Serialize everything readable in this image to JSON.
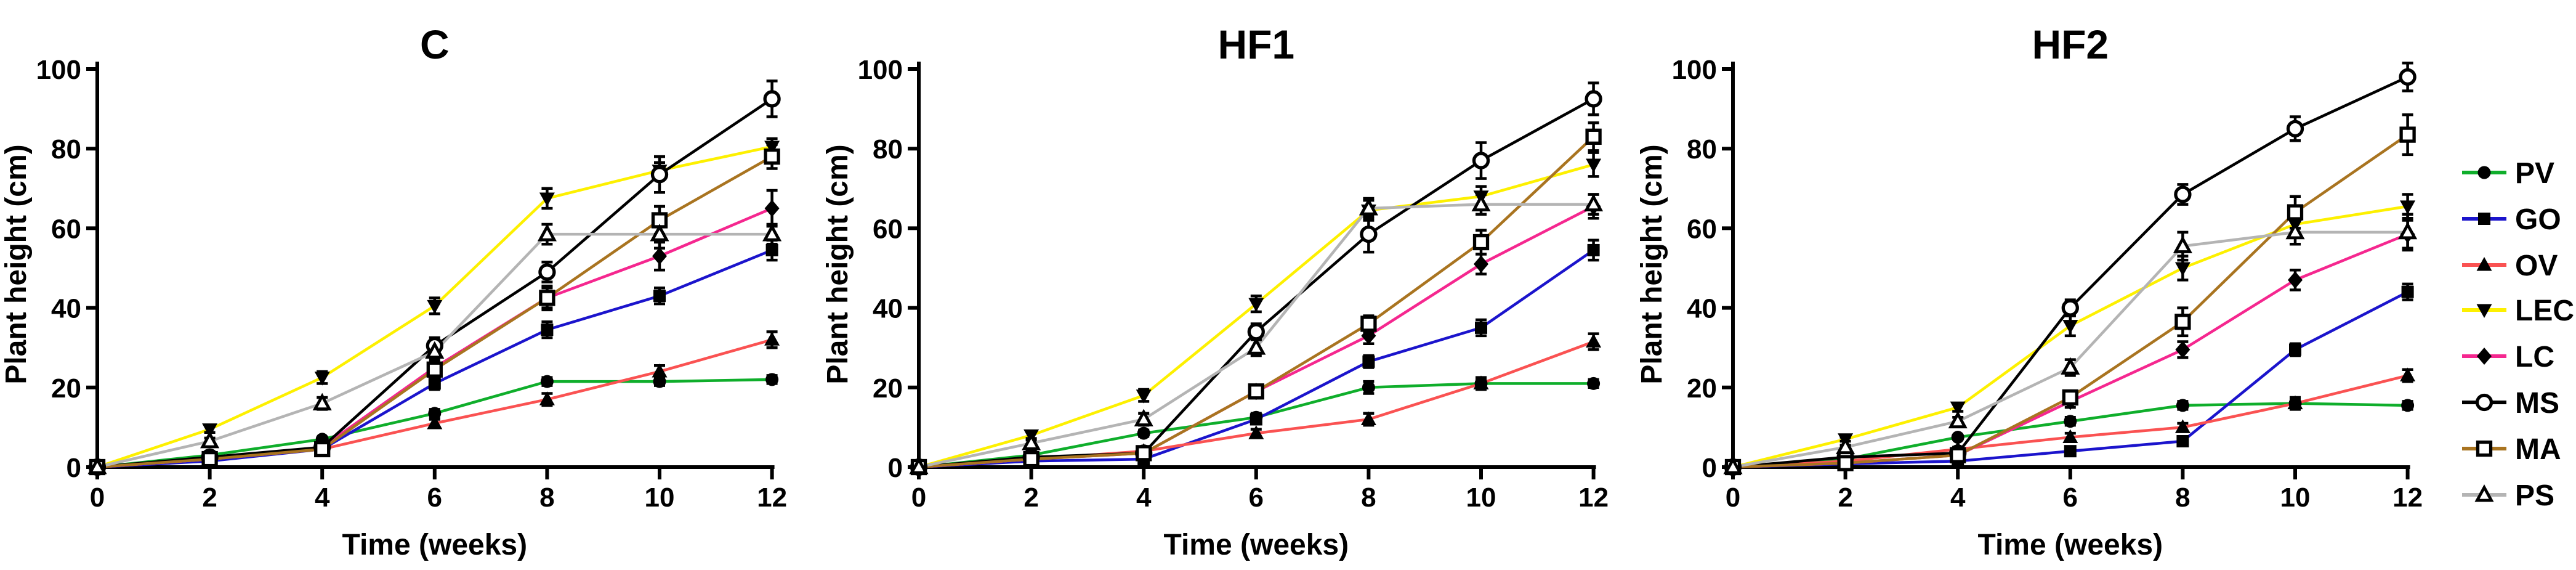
{
  "figure": {
    "type": "scientific-line-figure",
    "panels_count": 3,
    "background": "#ffffff",
    "marker_color": "#000000"
  },
  "chart_data": [
    {
      "type": "line",
      "title": "C",
      "xlabel": "Time (weeks)",
      "ylabel": "Plant height (cm)",
      "x": [
        0,
        2,
        4,
        6,
        8,
        10,
        12
      ],
      "xlim": [
        0,
        12
      ],
      "ylim": [
        0,
        100
      ],
      "xticks": [
        0,
        2,
        4,
        6,
        8,
        10,
        12
      ],
      "yticks": [
        0,
        20,
        40,
        60,
        80,
        100
      ],
      "grid": false,
      "series": [
        {
          "name": "PV",
          "values": [
            0,
            3,
            7,
            13.5,
            21.5,
            21.5,
            22
          ],
          "errors": [
            0,
            0,
            0,
            1,
            1,
            1,
            1
          ]
        },
        {
          "name": "GO",
          "values": [
            0,
            1.5,
            4.5,
            21,
            34.5,
            43,
            54.5
          ],
          "errors": [
            0,
            0,
            0.5,
            1.5,
            2,
            2,
            2.5
          ]
        },
        {
          "name": "OV",
          "values": [
            0,
            2,
            4.5,
            11,
            17,
            24,
            32
          ],
          "errors": [
            0,
            0,
            0.5,
            1,
            1.5,
            1.5,
            2
          ]
        },
        {
          "name": "LEC",
          "values": [
            0,
            9.5,
            22.5,
            40.5,
            67.5,
            74.5,
            80.5
          ],
          "errors": [
            0,
            0.8,
            1.5,
            2,
            2.5,
            2,
            2
          ]
        },
        {
          "name": "LC",
          "values": [
            0,
            2,
            5,
            25,
            42.5,
            53,
            65
          ],
          "errors": [
            0,
            0,
            0.5,
            1.5,
            2.5,
            3.5,
            4.5
          ]
        },
        {
          "name": "MS",
          "values": [
            0,
            2.5,
            5,
            30.5,
            49,
            73.5,
            92.5
          ],
          "errors": [
            0,
            0,
            0.5,
            2,
            2.5,
            4.5,
            4.5
          ]
        },
        {
          "name": "MA",
          "values": [
            0,
            2,
            4.5,
            24.5,
            42.5,
            62,
            78
          ],
          "errors": [
            0,
            0,
            0.5,
            1.5,
            3,
            3.5,
            3
          ]
        },
        {
          "name": "PS",
          "values": [
            0,
            6.5,
            16,
            29,
            58.5,
            58.5,
            58.5
          ],
          "errors": [
            0,
            0.8,
            1.5,
            2,
            2.5,
            3.5,
            2.5
          ]
        }
      ]
    },
    {
      "type": "line",
      "title": "HF1",
      "xlabel": "Time (weeks)",
      "ylabel": "Plant height (cm)",
      "x": [
        0,
        2,
        4,
        6,
        8,
        10,
        12
      ],
      "xlim": [
        0,
        12
      ],
      "ylim": [
        0,
        100
      ],
      "xticks": [
        0,
        2,
        4,
        6,
        8,
        10,
        12
      ],
      "yticks": [
        0,
        20,
        40,
        60,
        80,
        100
      ],
      "grid": false,
      "series": [
        {
          "name": "PV",
          "values": [
            0,
            3,
            8.5,
            12.5,
            20,
            21,
            21
          ],
          "errors": [
            0,
            0,
            0.8,
            1,
            1.5,
            1,
            1
          ]
        },
        {
          "name": "GO",
          "values": [
            0,
            1.5,
            2,
            12,
            26.5,
            35,
            54.5
          ],
          "errors": [
            0,
            0,
            0.5,
            1,
            1.5,
            2,
            2.5
          ]
        },
        {
          "name": "OV",
          "values": [
            0,
            2,
            4,
            8.5,
            12,
            21,
            31.5
          ],
          "errors": [
            0,
            0,
            0.5,
            1,
            1.5,
            1.5,
            2
          ]
        },
        {
          "name": "LEC",
          "values": [
            0,
            8,
            18,
            41,
            64.5,
            68,
            76
          ],
          "errors": [
            0,
            0.8,
            1.5,
            2,
            2.5,
            2.5,
            3
          ]
        },
        {
          "name": "LC",
          "values": [
            0,
            2,
            3.5,
            19,
            33,
            51,
            65.5
          ],
          "errors": [
            0,
            0,
            0.5,
            1.5,
            2,
            2.5,
            3
          ]
        },
        {
          "name": "MS",
          "values": [
            0,
            2.5,
            3.5,
            34,
            58.5,
            77,
            92.5
          ],
          "errors": [
            0,
            0,
            0.5,
            2,
            4.5,
            4.5,
            4
          ]
        },
        {
          "name": "MA",
          "values": [
            0,
            2,
            3.5,
            19,
            36,
            56.5,
            83
          ],
          "errors": [
            0,
            0,
            0.5,
            1.5,
            2,
            3,
            3.5
          ]
        },
        {
          "name": "PS",
          "values": [
            0,
            6,
            12,
            30,
            65,
            66,
            66
          ],
          "errors": [
            0,
            0.8,
            1.5,
            2,
            2.5,
            2.5,
            2.5
          ]
        }
      ]
    },
    {
      "type": "line",
      "title": "HF2",
      "xlabel": "Time (weeks)",
      "ylabel": "Plant height (cm)",
      "x": [
        0,
        2,
        4,
        6,
        8,
        10,
        12
      ],
      "xlim": [
        0,
        12
      ],
      "ylim": [
        0,
        100
      ],
      "xticks": [
        0,
        2,
        4,
        6,
        8,
        10,
        12
      ],
      "yticks": [
        0,
        20,
        40,
        60,
        80,
        100
      ],
      "grid": false,
      "series": [
        {
          "name": "PV",
          "values": [
            0,
            2,
            7.5,
            11.5,
            15.5,
            16,
            15.5
          ],
          "errors": [
            0,
            0,
            0.5,
            1,
            1,
            1,
            1
          ]
        },
        {
          "name": "GO",
          "values": [
            0,
            0.8,
            1.5,
            4,
            6.5,
            29.5,
            44
          ],
          "errors": [
            0,
            0,
            0.3,
            0.5,
            1,
            1.5,
            2
          ]
        },
        {
          "name": "OV",
          "values": [
            0,
            1.5,
            4.5,
            7.5,
            10,
            16,
            23
          ],
          "errors": [
            0,
            0,
            0.5,
            1,
            1,
            1.5,
            1.5
          ]
        },
        {
          "name": "LEC",
          "values": [
            0,
            7,
            15,
            35.5,
            50,
            61,
            65.5
          ],
          "errors": [
            0,
            0.5,
            1,
            2.5,
            3,
            2.5,
            3
          ]
        },
        {
          "name": "LC",
          "values": [
            0,
            1,
            3,
            16.5,
            29.5,
            47,
            58.5
          ],
          "errors": [
            0,
            0,
            0.3,
            1.5,
            2,
            2.5,
            3.5
          ]
        },
        {
          "name": "MS",
          "values": [
            0,
            2.5,
            3.5,
            40,
            68.5,
            85,
            98
          ],
          "errors": [
            0,
            0,
            0.5,
            2,
            2.5,
            3,
            3.5
          ]
        },
        {
          "name": "MA",
          "values": [
            0,
            1,
            3,
            17.5,
            36.5,
            64,
            83.5
          ],
          "errors": [
            0,
            0,
            0.5,
            1.5,
            3.5,
            4,
            5
          ]
        },
        {
          "name": "PS",
          "values": [
            0,
            5,
            11.5,
            25,
            55.5,
            59,
            59
          ],
          "errors": [
            0,
            0.5,
            1,
            2,
            3.5,
            3,
            4.5
          ]
        }
      ]
    }
  ],
  "legend": {
    "position": "right",
    "entries": [
      {
        "label": "PV",
        "color": "#0fae2b",
        "marker": "circle-filled"
      },
      {
        "label": "GO",
        "color": "#1b14cc",
        "marker": "square-filled"
      },
      {
        "label": "OV",
        "color": "#fa5252",
        "marker": "triangle-up-filled"
      },
      {
        "label": "LEC",
        "color": "#fdf000",
        "marker": "triangle-down-filled"
      },
      {
        "label": "LC",
        "color": "#f5278f",
        "marker": "diamond-filled"
      },
      {
        "label": "MS",
        "color": "#000000",
        "marker": "circle-open"
      },
      {
        "label": "MA",
        "color": "#a97420",
        "marker": "square-open"
      },
      {
        "label": "PS",
        "color": "#b4b4b4",
        "marker": "triangle-up-open"
      }
    ]
  }
}
